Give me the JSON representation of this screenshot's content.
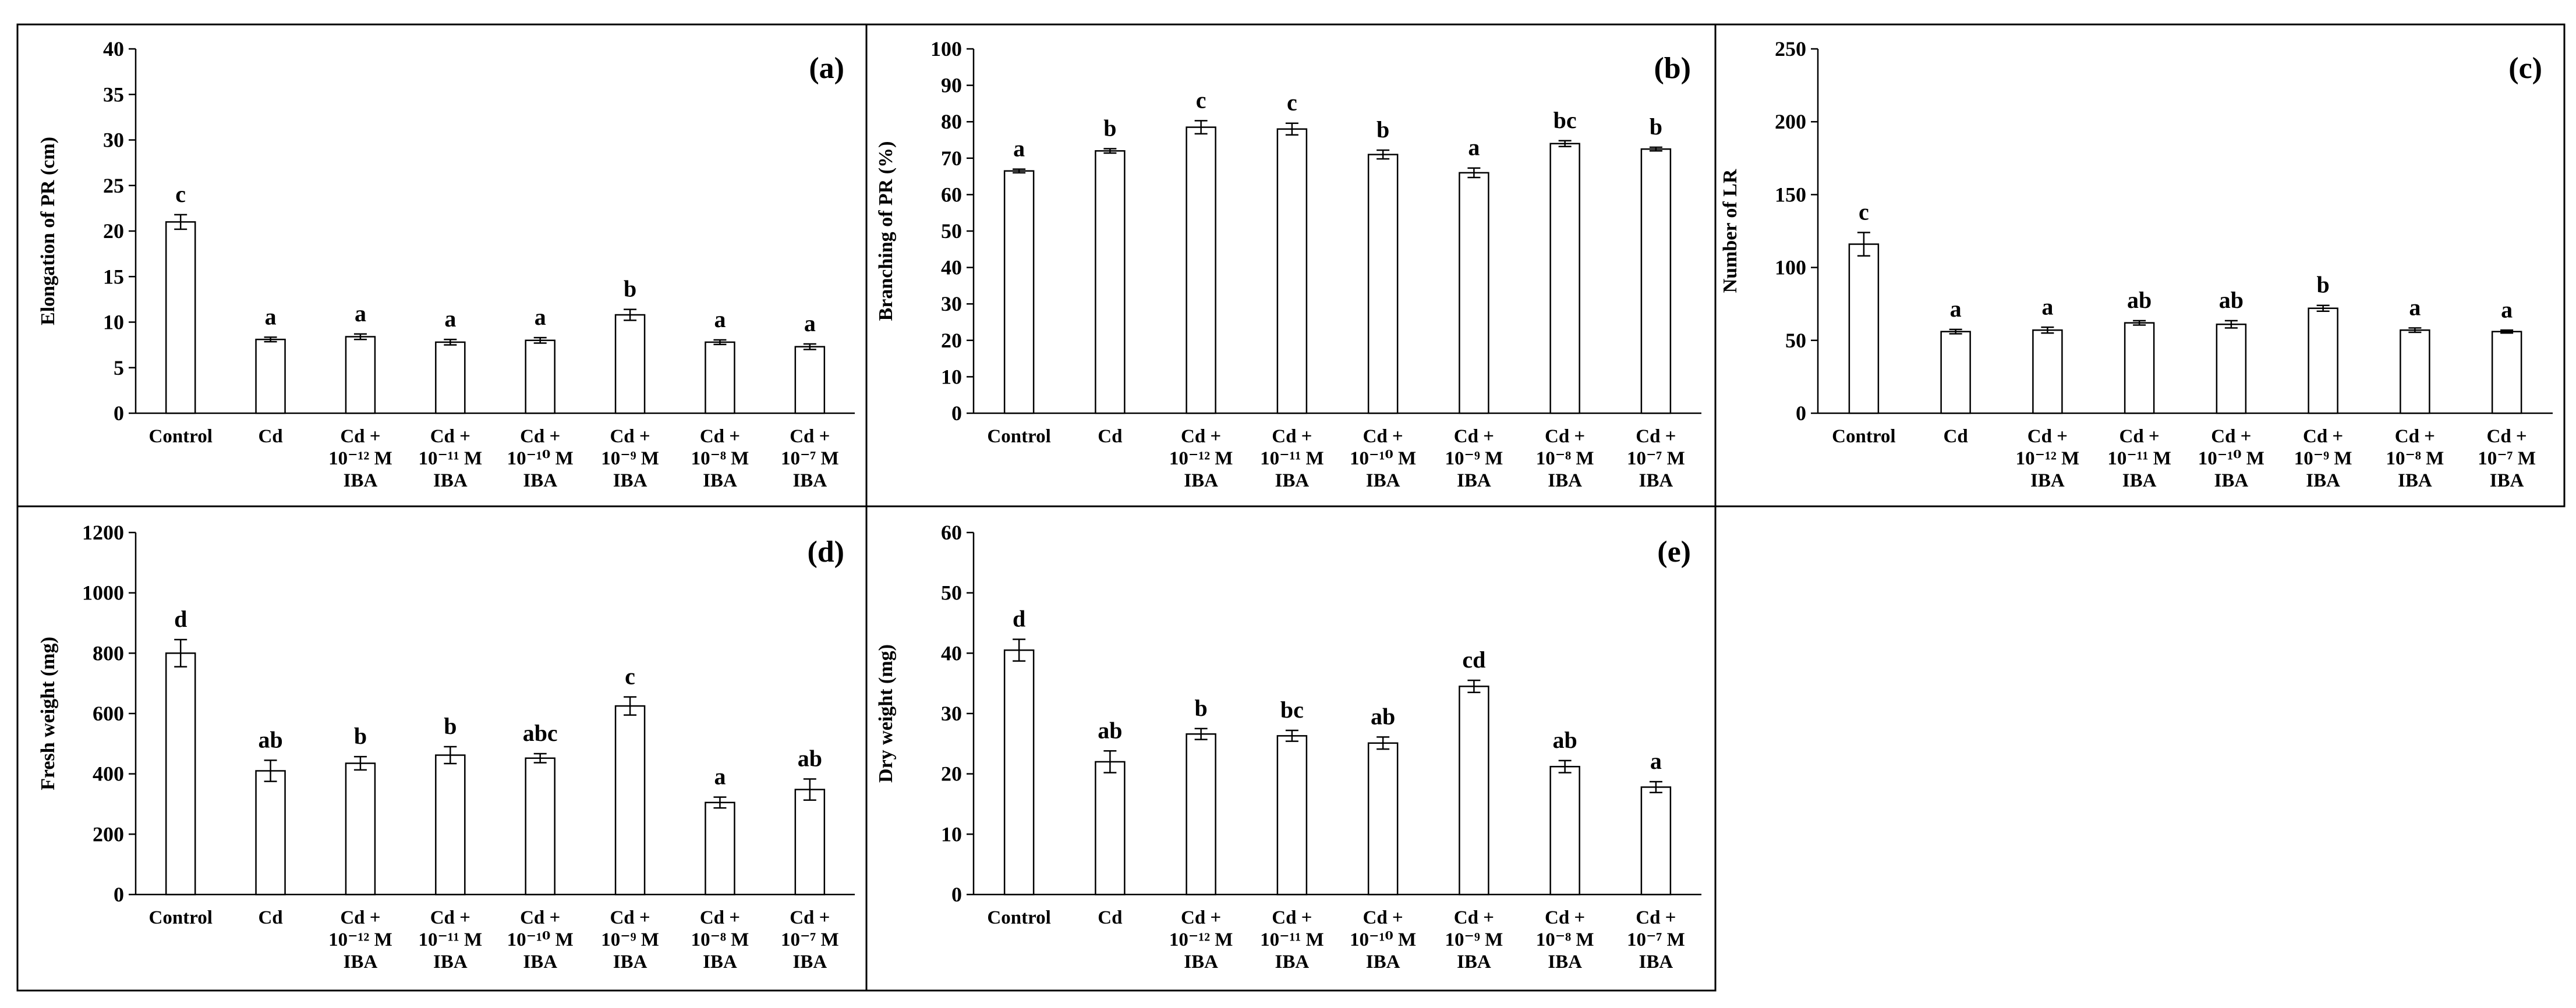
{
  "categories": [
    [
      "Control"
    ],
    [
      "Cd"
    ],
    [
      "Cd +",
      "10⁻¹² M",
      "IBA"
    ],
    [
      "Cd +",
      "10⁻¹¹ M",
      "IBA"
    ],
    [
      "Cd +",
      "10⁻¹⁰ M",
      "IBA"
    ],
    [
      "Cd +",
      "10⁻⁹ M",
      "IBA"
    ],
    [
      "Cd +",
      "10⁻⁸ M",
      "IBA"
    ],
    [
      "Cd +",
      "10⁻⁷ M",
      "IBA"
    ]
  ],
  "chart_data": [
    {
      "type": "bar",
      "panel": "(a)",
      "ylabel": "Elongation of PR (cm)",
      "ylim": [
        0,
        40
      ],
      "yticks": [
        0,
        5,
        10,
        15,
        20,
        25,
        30,
        35,
        40
      ],
      "values": [
        21.0,
        8.1,
        8.4,
        7.8,
        8.0,
        10.8,
        7.8,
        7.3
      ],
      "errors": [
        0.8,
        0.25,
        0.3,
        0.3,
        0.3,
        0.6,
        0.25,
        0.3
      ],
      "letters": [
        "c",
        "a",
        "a",
        "a",
        "a",
        "b",
        "a",
        "a"
      ]
    },
    {
      "type": "bar",
      "panel": "(b)",
      "ylabel": "Branching of PR (%)",
      "ylim": [
        0,
        100
      ],
      "yticks": [
        0,
        10,
        20,
        30,
        40,
        50,
        60,
        70,
        80,
        90,
        100
      ],
      "values": [
        66.5,
        72.0,
        78.5,
        78.0,
        71.0,
        66.0,
        74.0,
        72.5
      ],
      "errors": [
        0.5,
        0.6,
        1.8,
        1.6,
        1.2,
        1.3,
        0.8,
        0.5
      ],
      "letters": [
        "a",
        "b",
        "c",
        "c",
        "b",
        "a",
        "bc",
        "b"
      ]
    },
    {
      "type": "bar",
      "panel": "(c)",
      "ylabel": "Number of LR",
      "ylim": [
        0,
        250
      ],
      "yticks": [
        0,
        50,
        100,
        150,
        200,
        250
      ],
      "values": [
        116,
        56,
        57,
        62,
        61,
        72,
        57,
        56
      ],
      "errors": [
        8,
        1.5,
        2,
        1.5,
        2.5,
        2,
        1.5,
        1
      ],
      "letters": [
        "c",
        "a",
        "a",
        "ab",
        "ab",
        "b",
        "a",
        "a"
      ]
    },
    {
      "type": "bar",
      "panel": "(d)",
      "ylabel": "Fresh weight (mg)",
      "ylim": [
        0,
        1200
      ],
      "yticks": [
        0,
        200,
        400,
        600,
        800,
        1000,
        1200
      ],
      "values": [
        800,
        410,
        435,
        462,
        452,
        625,
        305,
        348
      ],
      "errors": [
        45,
        35,
        22,
        28,
        15,
        30,
        18,
        35
      ],
      "letters": [
        "d",
        "ab",
        "b",
        "b",
        "abc",
        "c",
        "a",
        "ab"
      ]
    },
    {
      "type": "bar",
      "panel": "(e)",
      "ylabel": "Dry weight (mg)",
      "ylim": [
        0,
        60
      ],
      "yticks": [
        0,
        10,
        20,
        30,
        40,
        50,
        60
      ],
      "values": [
        40.5,
        22.0,
        26.6,
        26.3,
        25.1,
        34.5,
        21.2,
        17.8
      ],
      "errors": [
        1.8,
        1.8,
        0.9,
        0.9,
        1.0,
        1.0,
        1.0,
        0.9
      ],
      "letters": [
        "d",
        "ab",
        "b",
        "bc",
        "ab",
        "cd",
        "ab",
        "a"
      ]
    }
  ]
}
